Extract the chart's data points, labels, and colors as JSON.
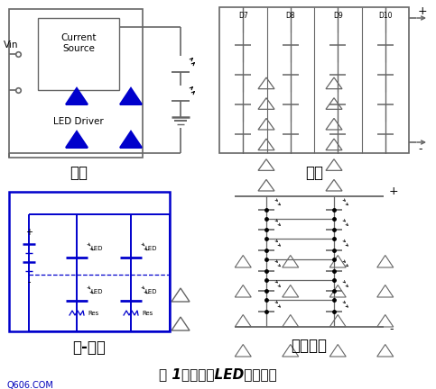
{
  "title": "图 1：常见的LED排列方式",
  "label_series": "串联",
  "label_parallel": "并联",
  "label_series_parallel": "串-并联",
  "label_cross": "交叉连接",
  "bg_color": "#ffffff",
  "gray": "#666666",
  "blue": "#0000cc",
  "black": "#111111",
  "watermark": "Q606.COM",
  "watermark_color": "#0000bb",
  "parallel_labels": [
    "D7",
    "D8",
    "D9",
    "D10"
  ],
  "n_parallel_cols": 4,
  "n_cross_rows": 6,
  "n_cross_cols": 2
}
